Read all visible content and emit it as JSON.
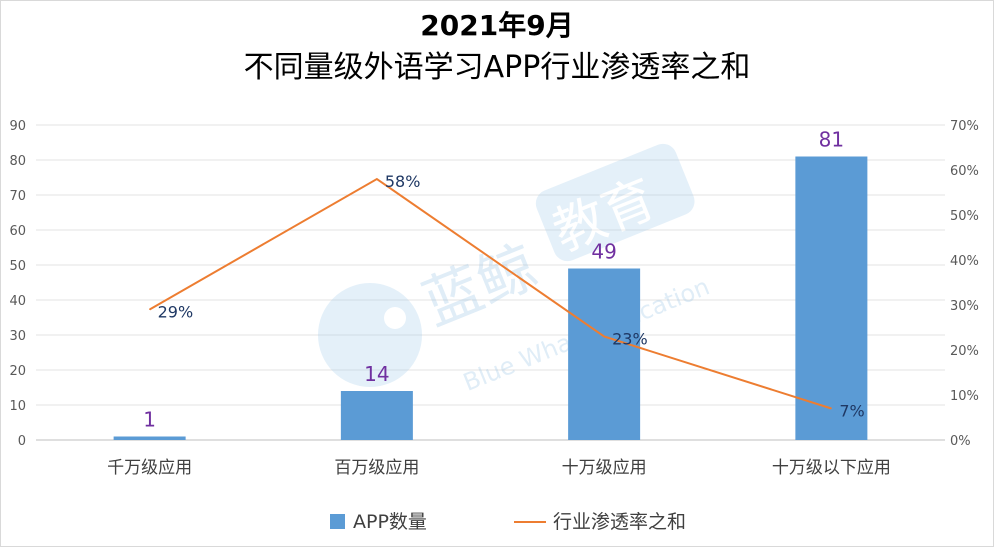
{
  "chart_data": {
    "type": "bar+line",
    "title": "2021年9月",
    "subtitle": "不同量级外语学习APP行业渗透率之和",
    "categories": [
      "千万级应用",
      "百万级应用",
      "十万级应用",
      "十万级以下应用"
    ],
    "series": [
      {
        "name": "APP数量",
        "type": "bar",
        "axis": "left",
        "values": [
          1,
          14,
          49,
          81
        ],
        "labels": [
          "1",
          "14",
          "49",
          "81"
        ],
        "color": "#5b9bd5"
      },
      {
        "name": "行业渗透率之和",
        "type": "line",
        "axis": "right",
        "values": [
          29,
          58,
          23,
          7
        ],
        "labels": [
          "29%",
          "58%",
          "23%",
          "7%"
        ],
        "color": "#ed7d31"
      }
    ],
    "left_axis": {
      "min": 0,
      "max": 90,
      "step": 10,
      "ticks": [
        "0",
        "10",
        "20",
        "30",
        "40",
        "50",
        "60",
        "70",
        "80",
        "90"
      ]
    },
    "right_axis": {
      "min": 0,
      "max": 70,
      "step": 10,
      "ticks": [
        "0%",
        "10%",
        "20%",
        "30%",
        "40%",
        "50%",
        "60%",
        "70%"
      ]
    },
    "grid": true,
    "legend": "bottom"
  },
  "watermark": {
    "brand_cn": "蓝鲸",
    "brand_cn_2": "教育",
    "brand_en": "Blue Whale Education"
  }
}
